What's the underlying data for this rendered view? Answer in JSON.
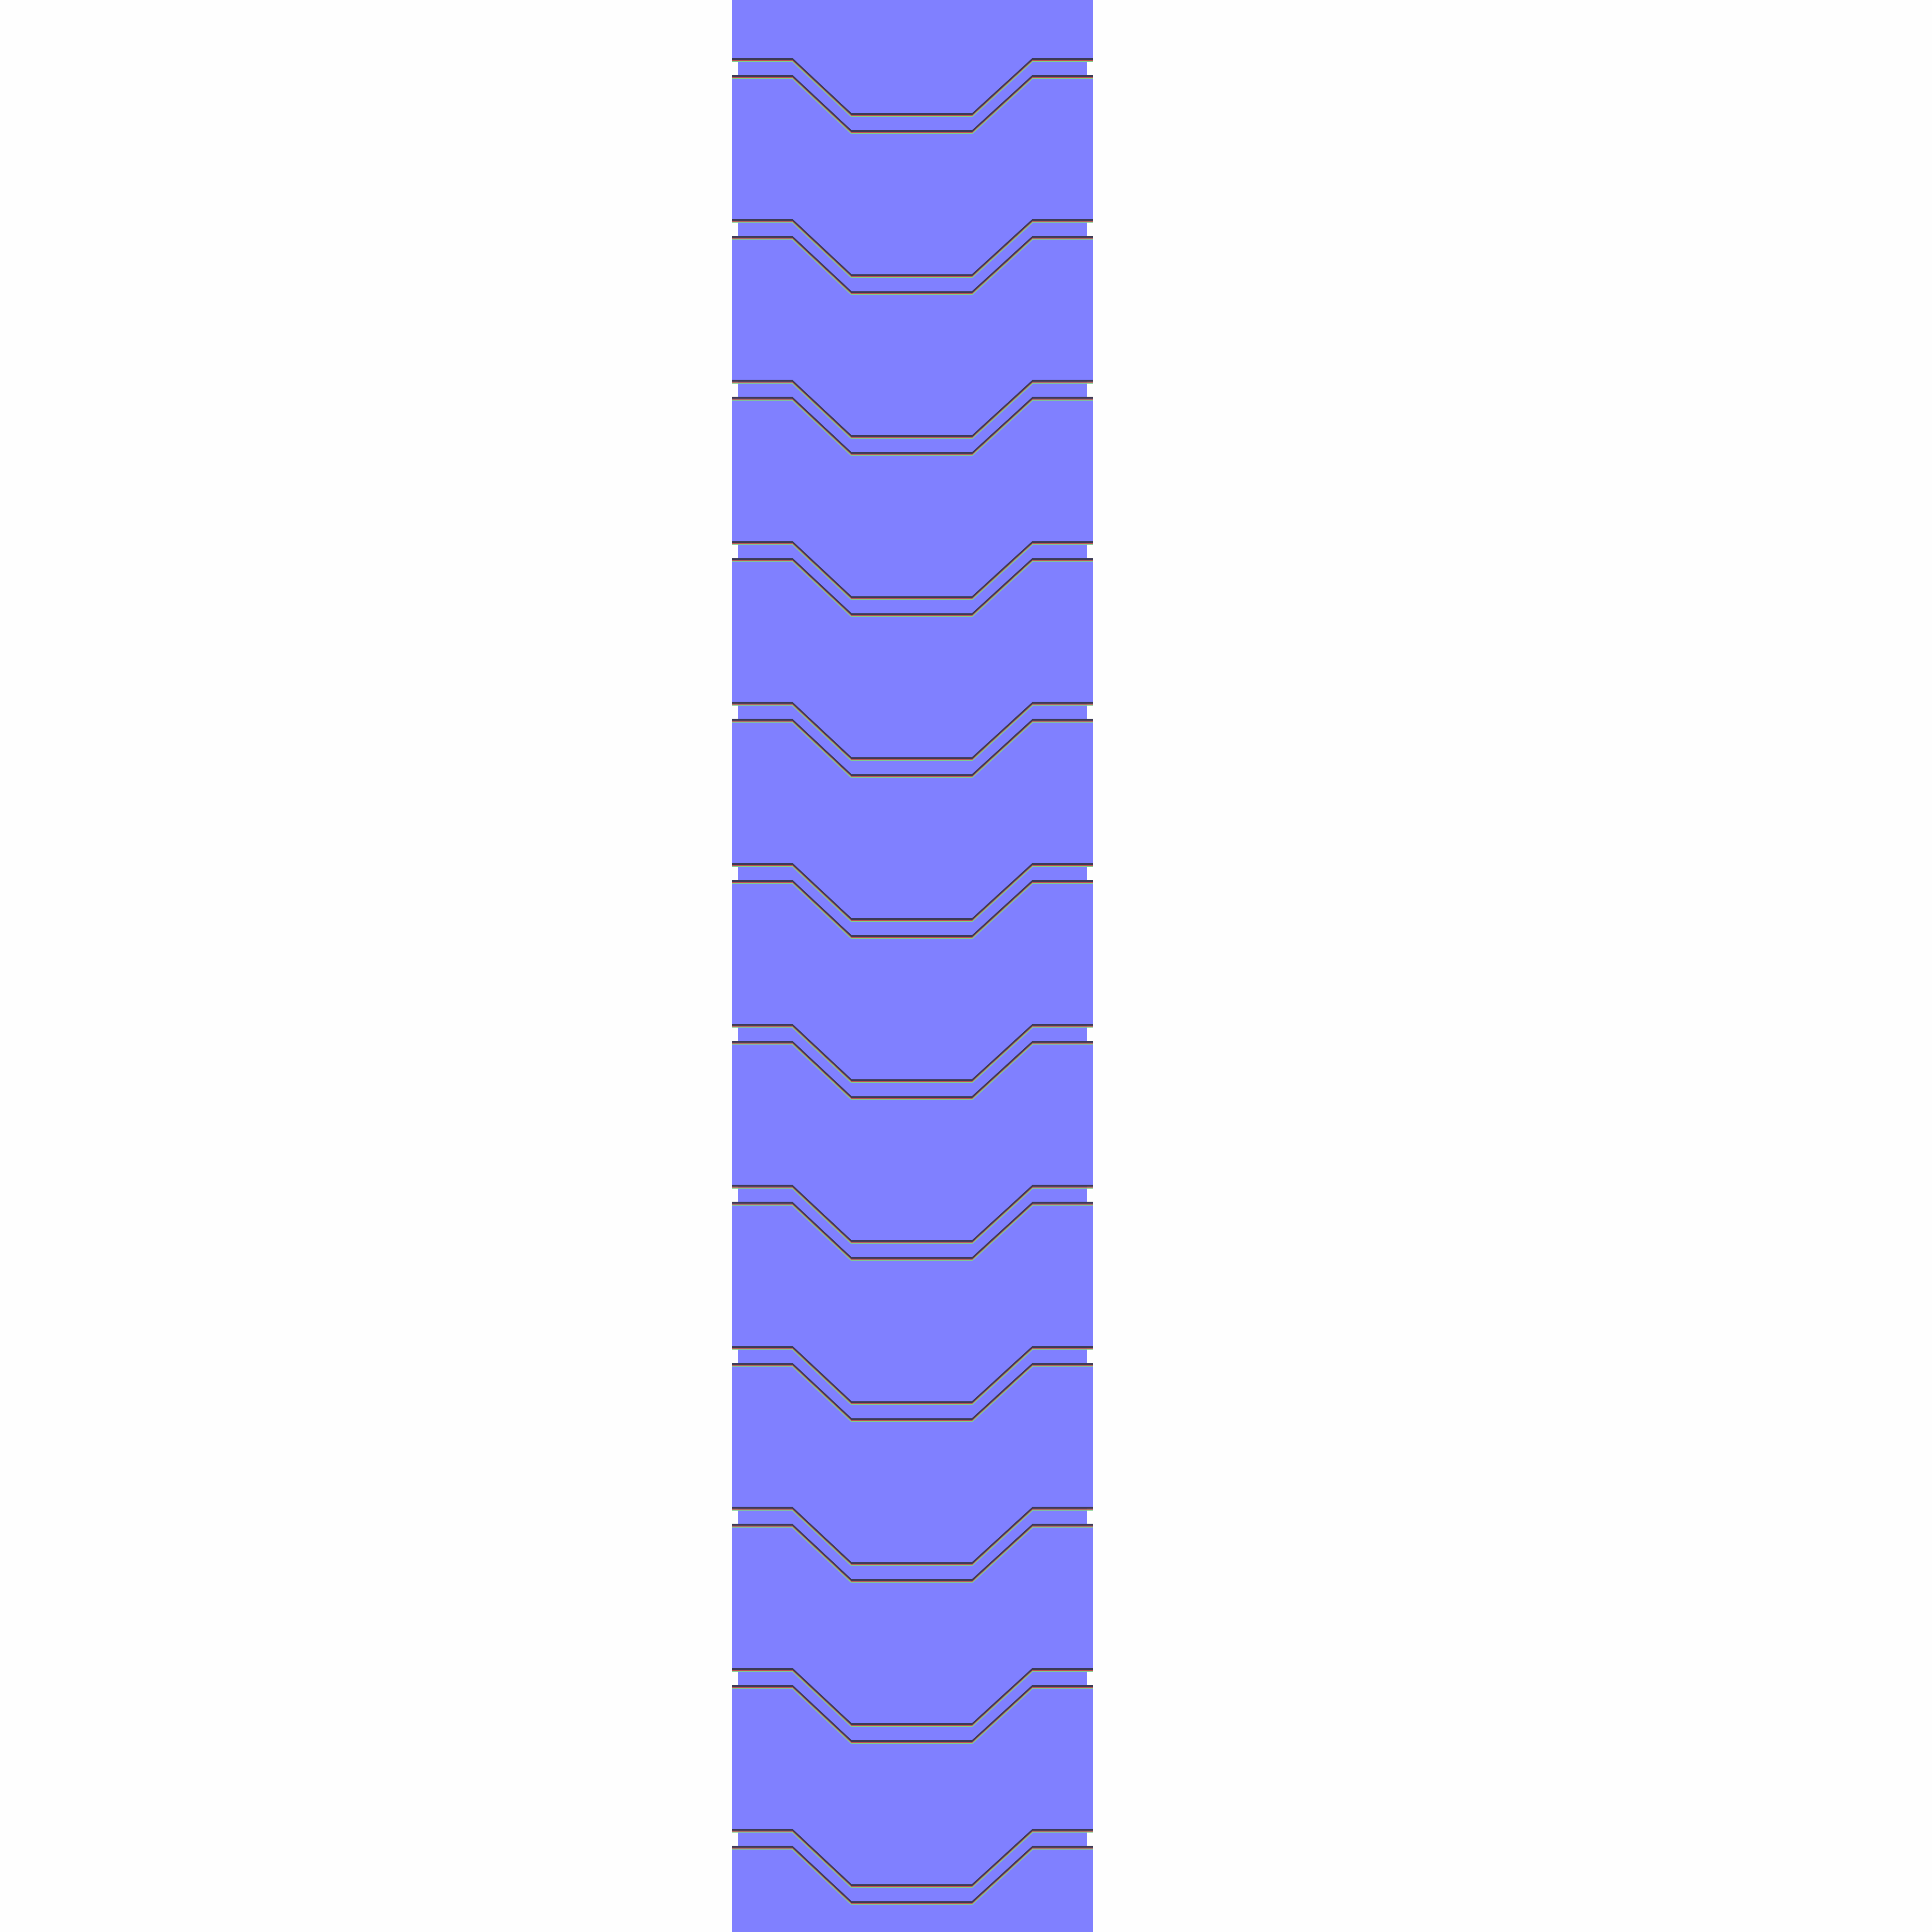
{
  "texture": {
    "background_color": "#fefefe",
    "base_color": "#8080ff",
    "groove_highlight_color": "#b9a0c8",
    "groove_shadow_color": "#3c3a55",
    "groove_green_color": "#7fd08a",
    "groove_red_color": "#c05050",
    "segment_count": 12,
    "description": ""
  }
}
